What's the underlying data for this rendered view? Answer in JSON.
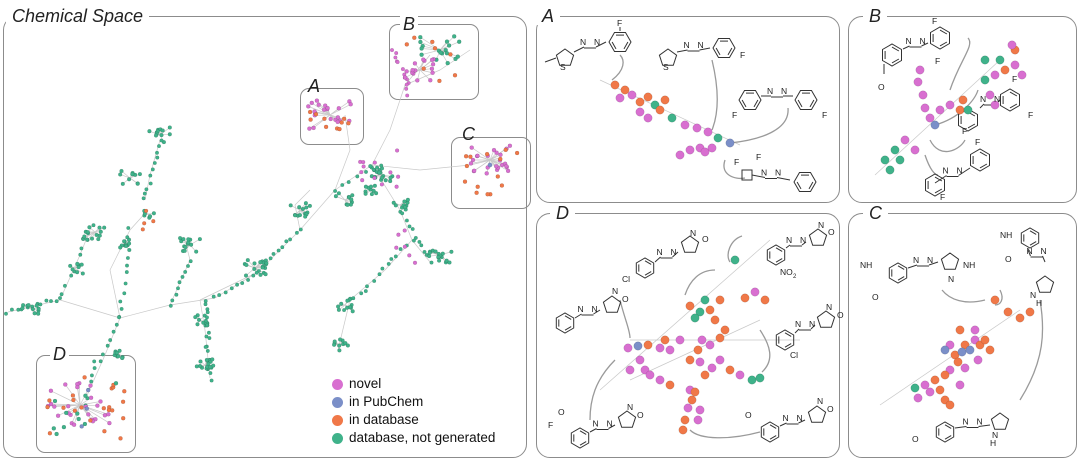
{
  "titles": {
    "main": "Chemical Space",
    "a": "A",
    "b": "B",
    "c": "C",
    "d": "D"
  },
  "overview_labels": {
    "a": "A",
    "b": "B",
    "c": "C",
    "d": "D"
  },
  "legend": [
    {
      "label": "novel",
      "color": "#d86fd0"
    },
    {
      "label": "in PubChem",
      "color": "#7b8fc8"
    },
    {
      "label": "in database",
      "color": "#f07848"
    },
    {
      "label": "database, not generated",
      "color": "#3fb28a"
    }
  ],
  "colors": {
    "novel": "#d86fd0",
    "pubchem": "#7b8fc8",
    "database": "#f07848",
    "not_generated": "#3fb28a",
    "frame": "#8c8c8c"
  },
  "molecule_labels": {
    "F": "F",
    "S": "S",
    "N": "N",
    "O": "O",
    "Cl": "Cl",
    "NO2": "NO",
    "NO2_sub": "2",
    "NH": "NH",
    "H": "H",
    "N_H": "N"
  }
}
